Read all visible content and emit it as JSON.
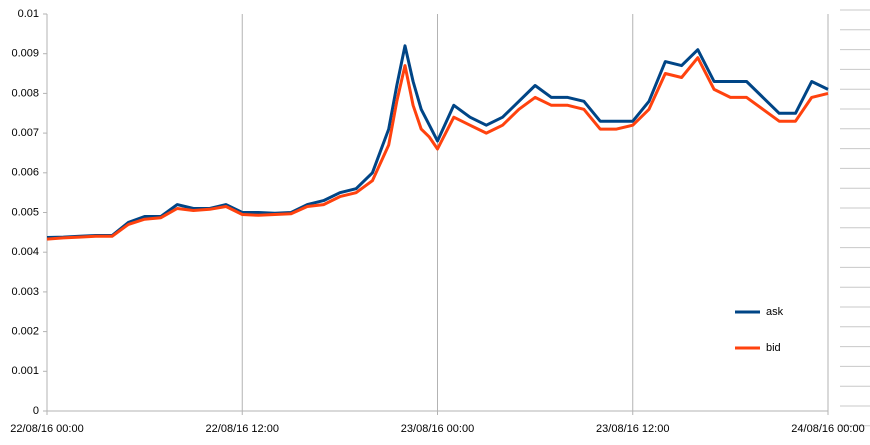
{
  "chart_data": {
    "type": "line",
    "x": [
      0,
      1,
      2,
      3,
      4,
      5,
      6,
      7,
      8,
      9,
      10,
      11,
      12,
      13,
      14,
      15,
      16,
      17,
      18,
      19,
      20,
      21,
      21.5,
      22,
      22.5,
      23,
      23.5,
      24,
      25,
      26,
      27,
      28,
      29,
      30,
      31,
      32,
      33,
      34,
      35,
      36,
      37,
      38,
      39,
      40,
      41,
      42,
      43,
      44,
      45,
      46,
      47,
      48
    ],
    "series": [
      {
        "name": "ask",
        "color": "#004586",
        "values": [
          0.00437,
          0.00438,
          0.0044,
          0.00442,
          0.00442,
          0.00475,
          0.0049,
          0.0049,
          0.0052,
          0.0051,
          0.0051,
          0.0052,
          0.005,
          0.005,
          0.00498,
          0.005,
          0.0052,
          0.0053,
          0.0055,
          0.0056,
          0.006,
          0.0071,
          0.0082,
          0.0092,
          0.0083,
          0.0076,
          0.0072,
          0.0068,
          0.0077,
          0.0074,
          0.0072,
          0.0074,
          0.0078,
          0.0082,
          0.0079,
          0.0079,
          0.0078,
          0.0073,
          0.0073,
          0.0073,
          0.0078,
          0.0088,
          0.0087,
          0.0091,
          0.0083,
          0.0083,
          0.0083,
          0.0079,
          0.0075,
          0.0075,
          0.0083,
          0.0081
        ]
      },
      {
        "name": "bid",
        "color": "#ff420e",
        "values": [
          0.00433,
          0.00436,
          0.00438,
          0.0044,
          0.0044,
          0.0047,
          0.00483,
          0.00487,
          0.0051,
          0.00505,
          0.00508,
          0.00515,
          0.00495,
          0.00493,
          0.00495,
          0.00497,
          0.00515,
          0.0052,
          0.0054,
          0.0055,
          0.0058,
          0.0067,
          0.0078,
          0.0087,
          0.0077,
          0.0071,
          0.0069,
          0.0066,
          0.0074,
          0.0072,
          0.007,
          0.0072,
          0.0076,
          0.0079,
          0.0077,
          0.0077,
          0.0076,
          0.0071,
          0.0071,
          0.0072,
          0.0076,
          0.0085,
          0.0084,
          0.0089,
          0.0081,
          0.0079,
          0.0079,
          0.0076,
          0.0073,
          0.0073,
          0.0079,
          0.008
        ]
      }
    ],
    "xlim": [
      0,
      48
    ],
    "xticks": [
      {
        "value": 0,
        "label": "22/08/16 00:00"
      },
      {
        "value": 12,
        "label": "22/08/16 12:00"
      },
      {
        "value": 24,
        "label": "23/08/16 00:00"
      },
      {
        "value": 36,
        "label": "23/08/16 12:00"
      },
      {
        "value": 48,
        "label": "24/08/16 00:00"
      }
    ],
    "ylim": [
      0,
      0.01
    ],
    "yticks": [
      0,
      0.001,
      0.002,
      0.003,
      0.004,
      0.005,
      0.006,
      0.007,
      0.008,
      0.009,
      0.01
    ],
    "grid": "x",
    "legend": "right"
  }
}
